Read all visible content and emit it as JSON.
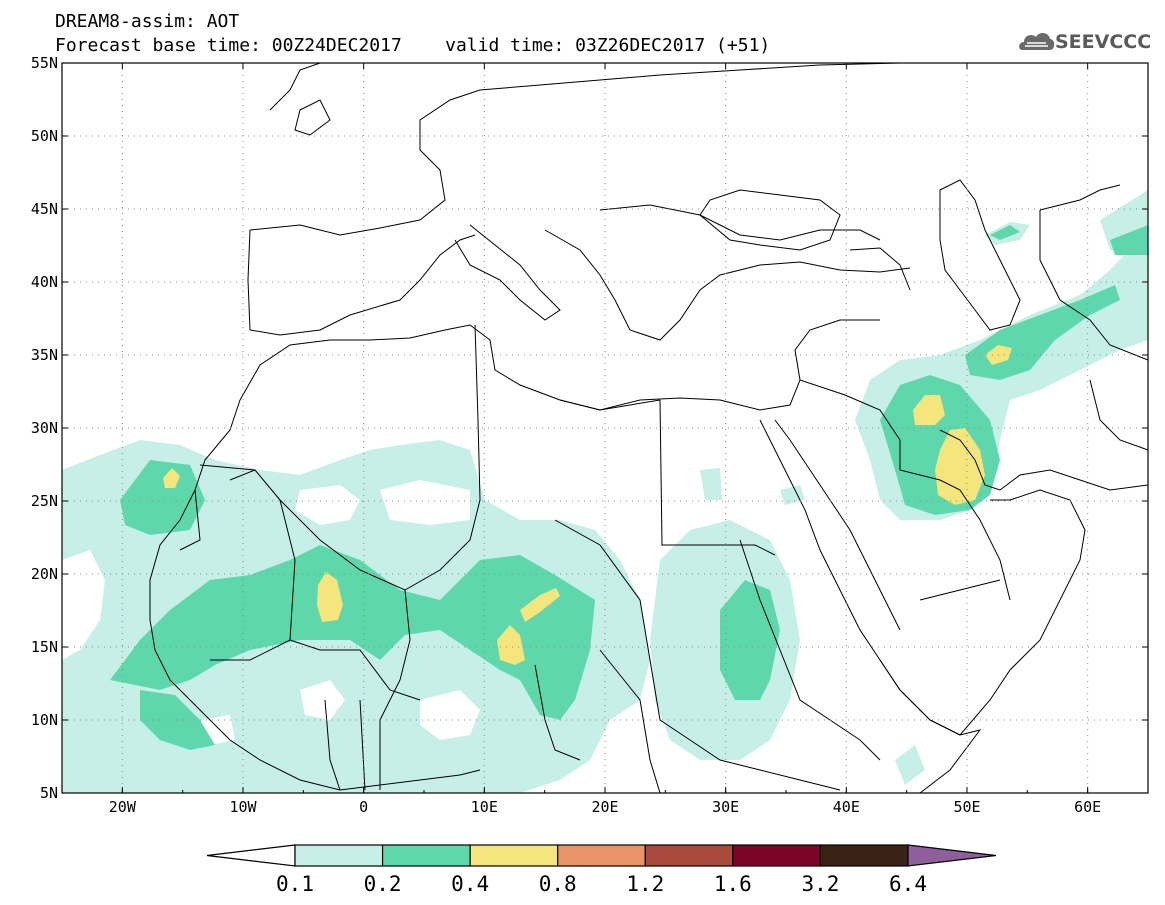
{
  "header": {
    "title_line1": "DREAM8-assim: AOT",
    "title_line2": "Forecast base time: 00Z24DEC2017    valid time: 03Z26DEC2017 (+51)"
  },
  "logo": {
    "text": "SEEVCCC",
    "icon": "cloud-icon"
  },
  "map": {
    "lat_labels": [
      "55N",
      "50N",
      "45N",
      "40N",
      "35N",
      "30N",
      "25N",
      "20N",
      "15N",
      "10N",
      "5N"
    ],
    "lon_labels": [
      "20W",
      "10W",
      "0",
      "10E",
      "20E",
      "30E",
      "40E",
      "50E",
      "60E"
    ]
  },
  "colorbar": {
    "labels": [
      "0.1",
      "0.2",
      "0.4",
      "0.8",
      "1.2",
      "1.6",
      "3.2",
      "6.4"
    ],
    "colors": [
      "#ffffff",
      "#c6f0e7",
      "#5ed7ad",
      "#f4e67c",
      "#e8956a",
      "#a84b3c",
      "#7c0527",
      "#3b2216",
      "#8e5f9b"
    ]
  }
}
